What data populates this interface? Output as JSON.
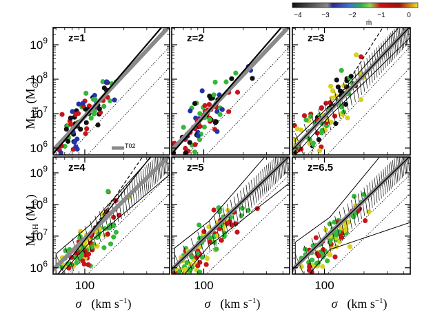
{
  "chart_data": {
    "type": "scatter",
    "layout": "2x3 grid of panels",
    "panels": [
      {
        "label": "z=1",
        "scatter_colors": [
          "blue",
          "green",
          "black",
          "red"
        ]
      },
      {
        "label": "z=2",
        "scatter_colors": [
          "green",
          "blue",
          "red",
          "black"
        ]
      },
      {
        "label": "z=3",
        "scatter_colors": [
          "red",
          "green",
          "black",
          "yellow"
        ]
      },
      {
        "label": "z=4",
        "scatter_colors": [
          "red",
          "yellow",
          "green"
        ]
      },
      {
        "label": "z=5",
        "scatter_colors": [
          "red",
          "yellow",
          "green"
        ]
      },
      {
        "label": "z=6.5",
        "scatter_colors": [
          "red",
          "yellow",
          "green"
        ]
      }
    ],
    "x_axis": {
      "label_symbol": "σ",
      "label_units_main": "(km s",
      "label_units_exp": "−1",
      "label_units_close": ")",
      "scale": "log",
      "tick_label": "100",
      "xlim": [
        57,
        450
      ]
    },
    "y_axis": {
      "label_main": "M",
      "label_sub": "BH",
      "label_units_open": "(M",
      "label_units_sub": "⊙",
      "label_units_close": ")",
      "scale": "log",
      "tick_labels": [
        {
          "base": "10",
          "exp": "6",
          "value": 6
        },
        {
          "base": "10",
          "exp": "7",
          "value": 7
        },
        {
          "base": "10",
          "exp": "8",
          "value": 8
        },
        {
          "base": "10",
          "exp": "9",
          "value": 9
        }
      ],
      "ylim_log": [
        5.8,
        9.5
      ]
    },
    "legend": {
      "item": "T02",
      "placement": "bottom-right of first panel"
    },
    "reference_relation": {
      "name": "T02",
      "log_M_at_200": 8.13,
      "slope": 4.02
    },
    "colorbar": {
      "label": "ṁ",
      "ticks": [
        "−4",
        "−3",
        "−2",
        "−1",
        "0"
      ],
      "range": [
        -4.5,
        0.5
      ],
      "placement": "top-right"
    }
  }
}
